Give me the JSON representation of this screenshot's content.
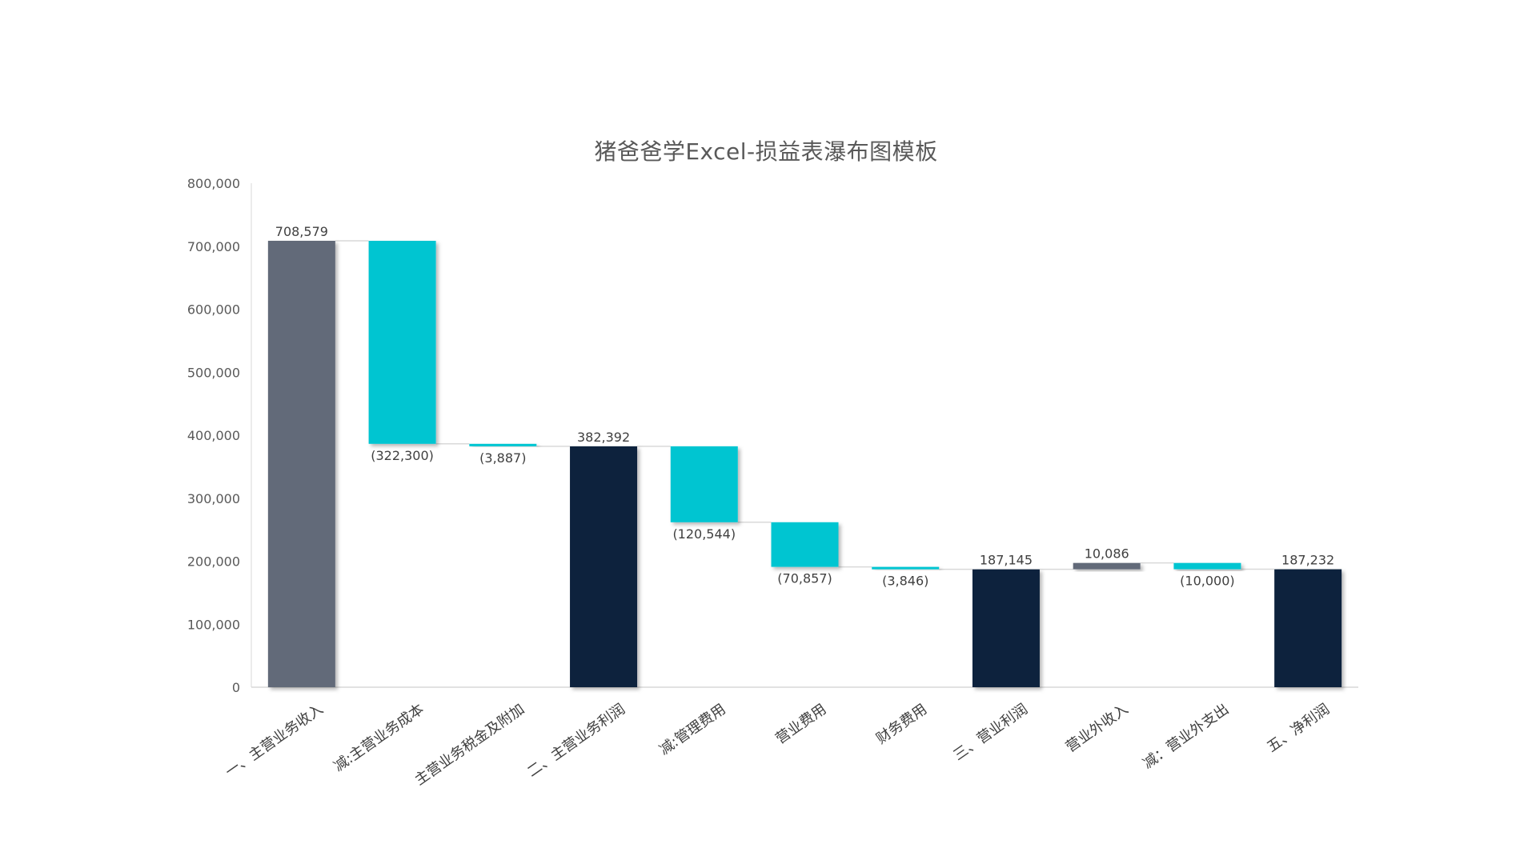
{
  "chart_data": {
    "type": "bar",
    "subtype": "waterfall",
    "title": "猪爸爸学Excel-损益表瀑布图模板",
    "xlabel": "",
    "ylabel": "",
    "ylim": [
      0,
      800000
    ],
    "yticks": [
      0,
      100000,
      200000,
      300000,
      400000,
      500000,
      600000,
      700000,
      800000
    ],
    "ytick_labels": [
      "0",
      "100,000",
      "200,000",
      "300,000",
      "400,000",
      "500,000",
      "600,000",
      "700,000",
      "800,000"
    ],
    "grid": false,
    "legend": "none",
    "colors": {
      "start": "#626b79",
      "decrease": "#00c5d1",
      "increase": "#626b79",
      "total": "#0c233d",
      "connector": "#d9d9d9",
      "axis": "#d9d9d9"
    },
    "categories": [
      "一、主营业务收入",
      "减:主营业务成本",
      "主营业务税金及附加",
      "二、主营业务利润",
      "减:管理费用",
      "营业费用",
      "财务费用",
      "三、营业利润",
      "营业外收入",
      "减：营业外支出",
      "五、净利润"
    ],
    "values": [
      708579,
      -322300,
      -3887,
      382392,
      -120544,
      -70857,
      -3846,
      187145,
      10086,
      -10000,
      187232
    ],
    "kinds": [
      "start",
      "decrease",
      "decrease",
      "total",
      "decrease",
      "decrease",
      "decrease",
      "total",
      "increase",
      "decrease",
      "total"
    ],
    "data_labels": [
      "708,579",
      "(322,300)",
      "(3,887)",
      "382,392",
      "(120,544)",
      "(70,857)",
      "(3,846)",
      "187,145",
      "10,086",
      "(10,000)",
      "187,232"
    ]
  }
}
